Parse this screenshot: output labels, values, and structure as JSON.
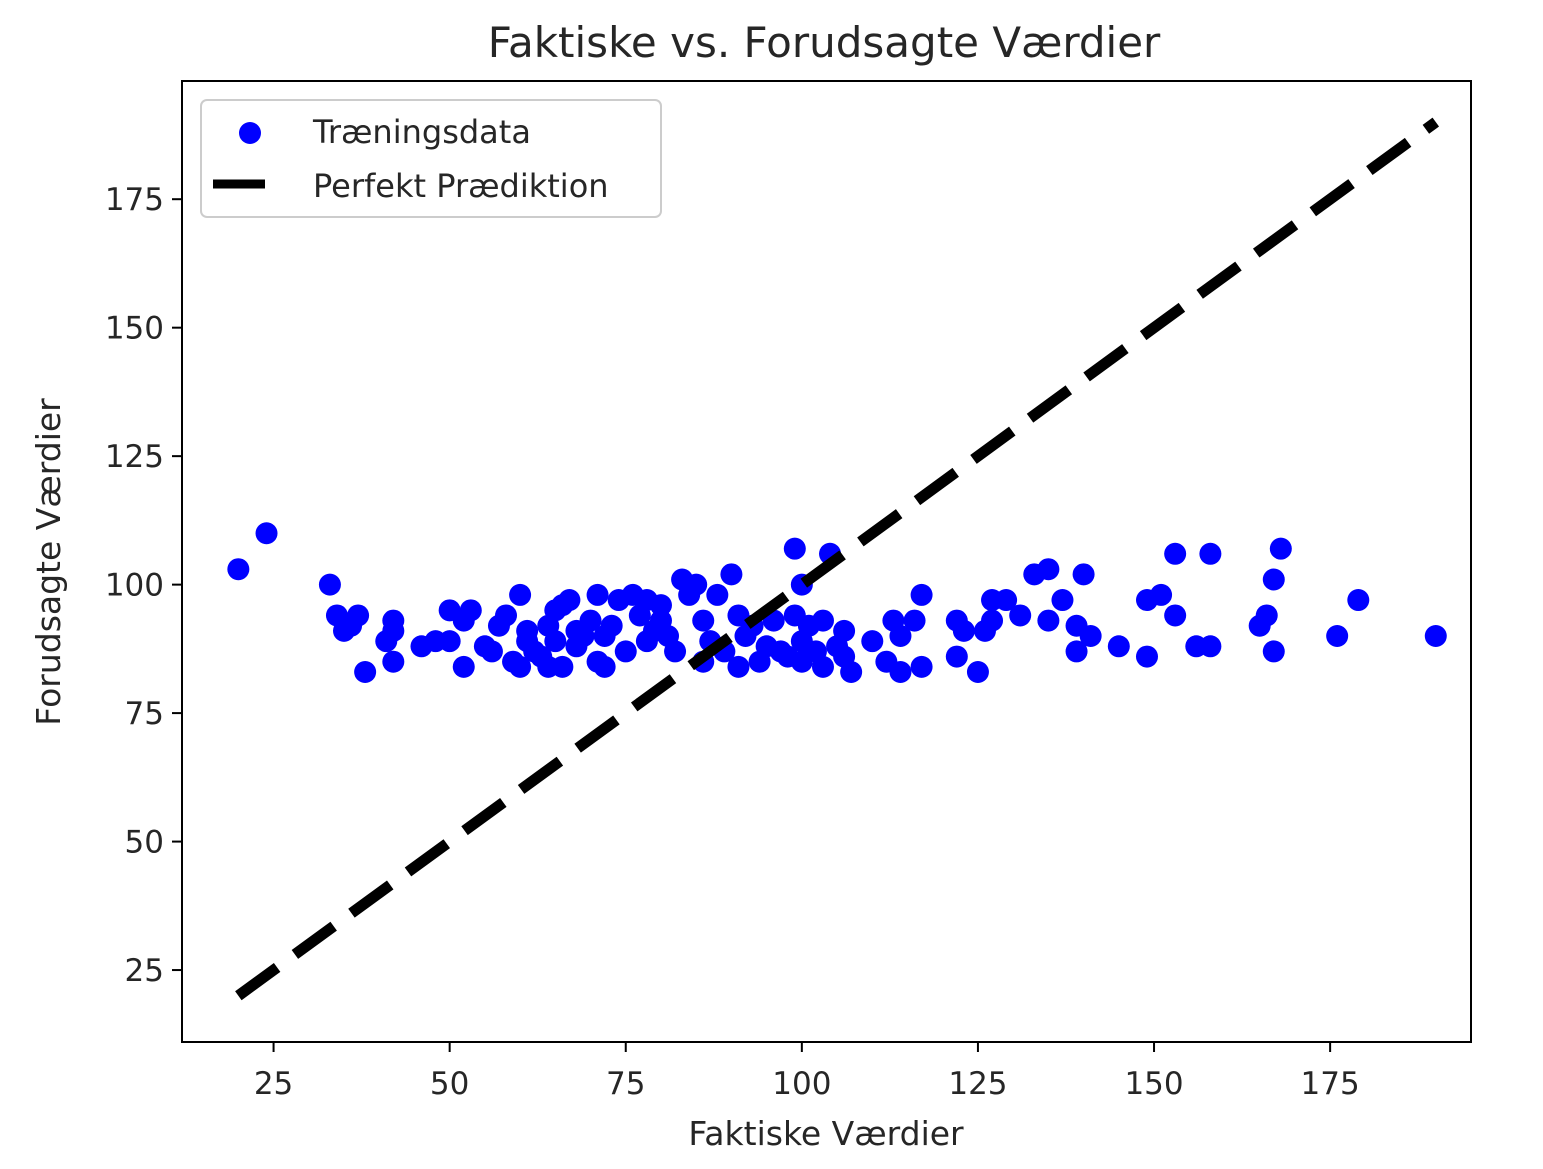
{
  "chart_data": {
    "type": "scatter",
    "title": "Faktiske vs. Forudsagte Værdier",
    "xlabel": "Faktiske Værdier",
    "ylabel": "Forudsagte Værdier",
    "xlim": [
      12,
      195
    ],
    "ylim": [
      11,
      198
    ],
    "xticks": [
      25,
      50,
      75,
      100,
      125,
      150,
      175
    ],
    "yticks": [
      25,
      50,
      75,
      100,
      125,
      150,
      175
    ],
    "xtick_labels": [
      "25",
      "50",
      "75",
      "100",
      "125",
      "150",
      "175"
    ],
    "ytick_labels": [
      "25",
      "50",
      "75",
      "100",
      "125",
      "150",
      "175"
    ],
    "grid": false,
    "legend_position": "top-left",
    "series": [
      {
        "name": "Træningsdata",
        "kind": "scatter",
        "color": "#0000ff",
        "points": [
          [
            20,
            103
          ],
          [
            24,
            110
          ],
          [
            33,
            100
          ],
          [
            34,
            94
          ],
          [
            35,
            91
          ],
          [
            36,
            92
          ],
          [
            37,
            94
          ],
          [
            38,
            83
          ],
          [
            41,
            89
          ],
          [
            42,
            93
          ],
          [
            42,
            85
          ],
          [
            42,
            91
          ],
          [
            46,
            88
          ],
          [
            48,
            89
          ],
          [
            50,
            89
          ],
          [
            50,
            95
          ],
          [
            52,
            84
          ],
          [
            52,
            93
          ],
          [
            53,
            95
          ],
          [
            55,
            88
          ],
          [
            56,
            87
          ],
          [
            57,
            92
          ],
          [
            58,
            94
          ],
          [
            59,
            85
          ],
          [
            60,
            98
          ],
          [
            60,
            84
          ],
          [
            61,
            89
          ],
          [
            61,
            91
          ],
          [
            62,
            87
          ],
          [
            63,
            86
          ],
          [
            64,
            92
          ],
          [
            64,
            84
          ],
          [
            65,
            89
          ],
          [
            65,
            95
          ],
          [
            66,
            84
          ],
          [
            66,
            96
          ],
          [
            67,
            97
          ],
          [
            68,
            88
          ],
          [
            68,
            91
          ],
          [
            69,
            90
          ],
          [
            70,
            93
          ],
          [
            71,
            98
          ],
          [
            71,
            85
          ],
          [
            72,
            90
          ],
          [
            72,
            84
          ],
          [
            73,
            92
          ],
          [
            74,
            97
          ],
          [
            75,
            87
          ],
          [
            76,
            98
          ],
          [
            77,
            94
          ],
          [
            78,
            89
          ],
          [
            78,
            97
          ],
          [
            79,
            91
          ],
          [
            80,
            96
          ],
          [
            80,
            93
          ],
          [
            81,
            90
          ],
          [
            82,
            87
          ],
          [
            83,
            101
          ],
          [
            84,
            98
          ],
          [
            85,
            100
          ],
          [
            86,
            93
          ],
          [
            86,
            85
          ],
          [
            87,
            89
          ],
          [
            88,
            98
          ],
          [
            89,
            87
          ],
          [
            90,
            102
          ],
          [
            91,
            94
          ],
          [
            91,
            84
          ],
          [
            92,
            90
          ],
          [
            93,
            92
          ],
          [
            94,
            85
          ],
          [
            95,
            88
          ],
          [
            96,
            93
          ],
          [
            97,
            87
          ],
          [
            98,
            86
          ],
          [
            99,
            107
          ],
          [
            99,
            94
          ],
          [
            100,
            100
          ],
          [
            100,
            89
          ],
          [
            100,
            85
          ],
          [
            101,
            92
          ],
          [
            102,
            87
          ],
          [
            103,
            93
          ],
          [
            103,
            84
          ],
          [
            104,
            106
          ],
          [
            105,
            88
          ],
          [
            106,
            86
          ],
          [
            106,
            91
          ],
          [
            107,
            83
          ],
          [
            110,
            89
          ],
          [
            112,
            85
          ],
          [
            113,
            93
          ],
          [
            114,
            83
          ],
          [
            114,
            90
          ],
          [
            116,
            93
          ],
          [
            117,
            98
          ],
          [
            117,
            84
          ],
          [
            122,
            93
          ],
          [
            122,
            86
          ],
          [
            123,
            91
          ],
          [
            125,
            83
          ],
          [
            126,
            91
          ],
          [
            127,
            97
          ],
          [
            127,
            93
          ],
          [
            129,
            97
          ],
          [
            131,
            94
          ],
          [
            133,
            102
          ],
          [
            135,
            103
          ],
          [
            135,
            93
          ],
          [
            137,
            97
          ],
          [
            139,
            87
          ],
          [
            139,
            92
          ],
          [
            140,
            102
          ],
          [
            141,
            90
          ],
          [
            145,
            88
          ],
          [
            149,
            97
          ],
          [
            149,
            86
          ],
          [
            151,
            98
          ],
          [
            153,
            94
          ],
          [
            153,
            106
          ],
          [
            156,
            88
          ],
          [
            158,
            106
          ],
          [
            158,
            88
          ],
          [
            165,
            92
          ],
          [
            166,
            94
          ],
          [
            167,
            101
          ],
          [
            167,
            87
          ],
          [
            168,
            107
          ],
          [
            176,
            90
          ],
          [
            179,
            97
          ],
          [
            190,
            90
          ]
        ]
      },
      {
        "name": "Perfekt Prædiktion",
        "kind": "line",
        "style": "dashed",
        "color": "#000000",
        "points": [
          [
            20,
            20
          ],
          [
            190,
            190
          ]
        ]
      }
    ]
  }
}
